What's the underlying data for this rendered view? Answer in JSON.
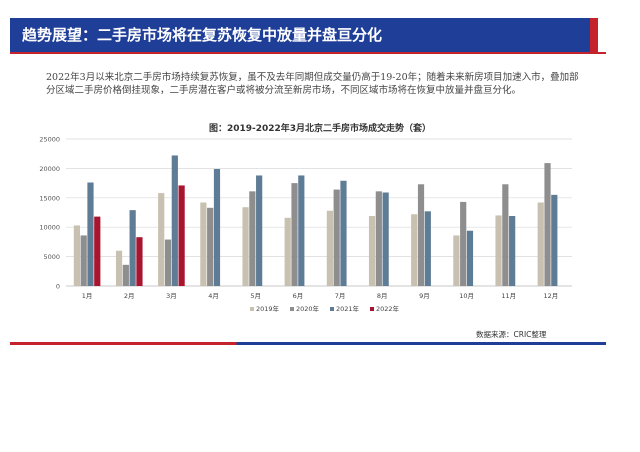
{
  "header": {
    "title": "趋势展望：二手房市场将在复苏恢复中放量并盘亘分化"
  },
  "summary": "2022年3月以来北京二手房市场持续复苏恢复，虽不及去年同期但成交量仍高于19-20年；随着未来新房项目加速入市，叠加部分区域二手房价格倒挂现象，二手房潜在客户或将被分流至新房市场，不同区域市场将在恢复中放量并盘亘分化。",
  "source": "数据来源：CRIC整理",
  "colors": {
    "header_bg": "#1f3e98",
    "accent_red": "#c4232b",
    "series_2019": "#c8c0b0",
    "series_2020": "#8e8e8e",
    "series_2021": "#5f7c96",
    "series_2022": "#a8152f"
  },
  "chart_data": {
    "type": "bar",
    "title": "图：2019-2022年3月北京二手房市场成交走势（套）",
    "categories": [
      "1月",
      "2月",
      "3月",
      "4月",
      "5月",
      "6月",
      "7月",
      "8月",
      "9月",
      "10月",
      "11月",
      "12月"
    ],
    "series": [
      {
        "name": "2019年",
        "values": [
          10300,
          6000,
          15800,
          14200,
          13400,
          11600,
          12800,
          11900,
          12200,
          8600,
          12000,
          14200
        ]
      },
      {
        "name": "2020年",
        "values": [
          8600,
          3600,
          7900,
          13300,
          16100,
          17500,
          16400,
          16100,
          17300,
          14300,
          17300,
          20900
        ]
      },
      {
        "name": "2021年",
        "values": [
          17600,
          12900,
          22200,
          19900,
          18800,
          18800,
          17900,
          15900,
          12700,
          9400,
          11900,
          15500
        ]
      },
      {
        "name": "2022年",
        "values": [
          11800,
          8300,
          17100,
          null,
          null,
          null,
          null,
          null,
          null,
          null,
          null,
          null
        ]
      }
    ],
    "ylim": [
      0,
      25000
    ],
    "yticks": [
      0,
      5000,
      10000,
      15000,
      20000,
      25000
    ],
    "grid": true,
    "legend": "bottom"
  }
}
